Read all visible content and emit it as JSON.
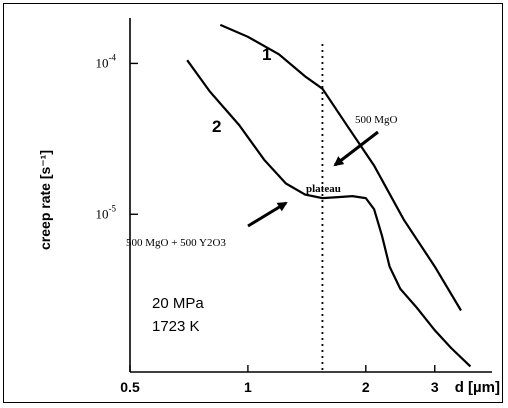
{
  "chart_data": {
    "type": "line",
    "xlabel": "d [µm]",
    "ylabel": "creep rate  [s⁻¹]",
    "x_scale": "log",
    "y_scale": "log",
    "xlim": [
      0.5,
      4.2
    ],
    "ylim": [
      9e-07,
      0.0002
    ],
    "x_ticks": [
      {
        "value": 0.5,
        "label": "0.5"
      },
      {
        "value": 1,
        "label": "1"
      },
      {
        "value": 2,
        "label": "2"
      },
      {
        "value": 3,
        "label": "3"
      }
    ],
    "y_ticks": [
      {
        "value": 0.0001,
        "mant": "10",
        "exp": "-4"
      },
      {
        "value": 1e-05,
        "mant": "10",
        "exp": "-5"
      }
    ],
    "grid": false,
    "vertical_reference_x": 1.55,
    "series": [
      {
        "name": "1",
        "x": [
          0.85,
          1.0,
          1.2,
          1.4,
          1.55,
          1.8,
          2.1,
          2.5,
          3.0,
          3.5
        ],
        "y": [
          0.00018,
          0.00015,
          0.000115,
          8.2e-05,
          6.8e-05,
          3.8e-05,
          2.1e-05,
          9.2e-06,
          4.5e-06,
          2.3e-06
        ]
      },
      {
        "name": "2",
        "x": [
          0.7,
          0.8,
          0.95,
          1.1,
          1.25,
          1.4,
          1.55,
          1.7,
          1.85,
          2.0,
          2.1,
          2.2,
          2.3,
          2.45,
          2.7,
          3.0,
          3.3,
          3.7
        ],
        "y": [
          0.000105,
          6.5e-05,
          3.9e-05,
          2.3e-05,
          1.6e-05,
          1.35e-05,
          1.28e-05,
          1.3e-05,
          1.32e-05,
          1.28e-05,
          1.08e-05,
          7.2e-06,
          4.5e-06,
          3.2e-06,
          2.4e-06,
          1.7e-06,
          1.3e-06,
          9.8e-07
        ]
      }
    ],
    "annotations": {
      "series1_material": "500 MgO",
      "series2_material": "500 MgO + 500 Y2O3",
      "plateau": "plateau",
      "stress": "20 MPa",
      "temperature": "1723 K"
    }
  }
}
